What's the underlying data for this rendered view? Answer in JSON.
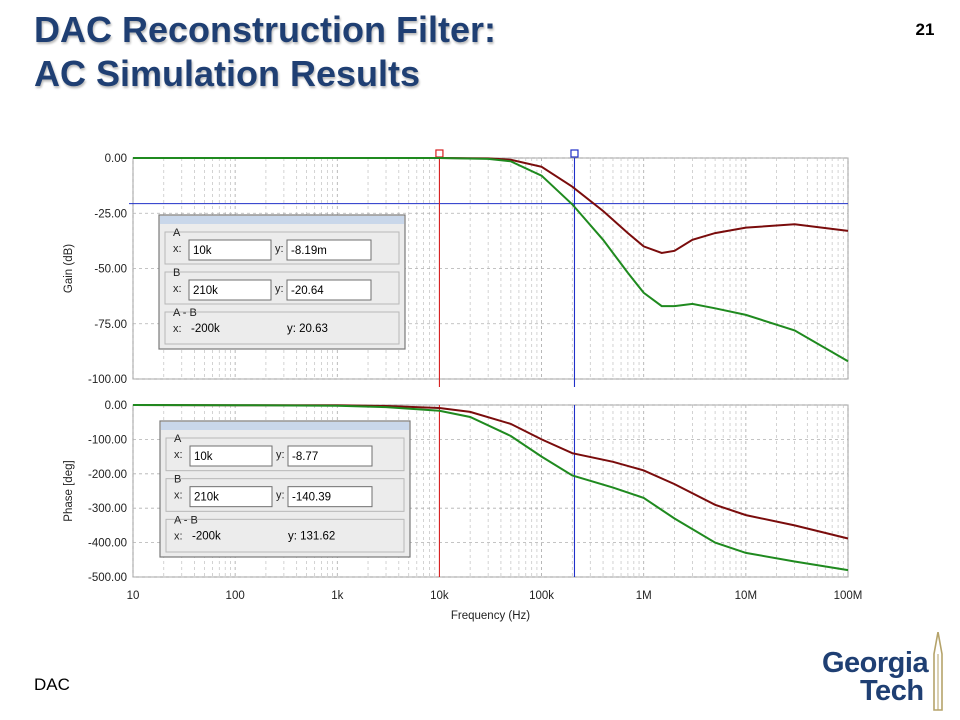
{
  "slide": {
    "title_line1": "DAC Reconstruction Filter:",
    "title_line2": "AC Simulation Results",
    "page_number": "21",
    "footer": "DAC",
    "logo": {
      "line1": "Georgia",
      "line2": "Tech"
    }
  },
  "colors": {
    "title": "#1f3f73",
    "trace_dark_red": "#7a0c0c",
    "trace_green": "#1f8a1f",
    "cursor_red": "#d62020",
    "cursor_blue": "#2030c8"
  },
  "chart_data": [
    {
      "type": "line",
      "panel": "gain",
      "ylabel": "Gain (dB)",
      "xlabel": "",
      "x_scale": "log",
      "xlim": [
        10,
        100000000
      ],
      "ylim": [
        -100,
        0
      ],
      "ytick_labels": [
        "0.00",
        "-25.00",
        "-50.00",
        "-75.00",
        "-100.00"
      ],
      "yticks": [
        0,
        -25,
        -50,
        -75,
        -100
      ],
      "grid": true,
      "cursors": [
        {
          "name": "A",
          "x": 10000,
          "color": "#d62020"
        },
        {
          "name": "B",
          "x": 210000,
          "color": "#2030c8"
        }
      ],
      "horizontal_cursor_y": -20.64,
      "series": [
        {
          "color": "#7a0c0c",
          "x": [
            10,
            1000,
            10000,
            30000,
            50000,
            100000,
            200000,
            400000,
            700000,
            1000000,
            1500000,
            2000000,
            3000000,
            5000000,
            10000000,
            30000000,
            100000000
          ],
          "values": [
            0,
            0,
            0,
            -0.2,
            -0.8,
            -4,
            -13,
            -24,
            -34,
            -40,
            -43,
            -42,
            -37,
            -34,
            -31.5,
            -30,
            -33
          ]
        },
        {
          "color": "#1f8a1f",
          "x": [
            10,
            1000,
            10000,
            30000,
            50000,
            100000,
            200000,
            400000,
            700000,
            1000000,
            1500000,
            2000000,
            3000000,
            5000000,
            10000000,
            30000000,
            100000000
          ],
          "values": [
            0,
            0,
            0,
            -0.4,
            -1.5,
            -8,
            -21,
            -37,
            -52,
            -61,
            -67,
            -67,
            -66,
            -68,
            -71,
            -78,
            -92
          ]
        }
      ],
      "cursor_box": {
        "A_label": "A",
        "A_x_label": "x:",
        "A_x": "10k",
        "A_y_label": "y:",
        "A_y": "-8.19m",
        "B_label": "B",
        "B_x_label": "x:",
        "B_x": "210k",
        "B_y_label": "y:",
        "B_y": "-20.64",
        "diff_label": "A - B",
        "diff_x_label": "x:",
        "diff_x": "-200k",
        "diff_y": "y: 20.63"
      }
    },
    {
      "type": "line",
      "panel": "phase",
      "ylabel": "Phase [deg]",
      "xlabel": "Frequency (Hz)",
      "x_scale": "log",
      "xlim": [
        10,
        100000000
      ],
      "ylim": [
        -500,
        0
      ],
      "xtick_labels": [
        "10",
        "100",
        "1k",
        "10k",
        "100k",
        "1M",
        "10M",
        "100M"
      ],
      "xticks": [
        10,
        100,
        1000,
        10000,
        100000,
        1000000,
        10000000,
        100000000
      ],
      "ytick_labels": [
        "0.00",
        "-100.00",
        "-200.00",
        "-300.00",
        "-400.00",
        "-500.00"
      ],
      "yticks": [
        0,
        -100,
        -200,
        -300,
        -400,
        -500
      ],
      "grid": true,
      "cursors": [
        {
          "name": "A",
          "x": 10000,
          "color": "#d62020"
        },
        {
          "name": "B",
          "x": 210000,
          "color": "#2030c8"
        }
      ],
      "series": [
        {
          "color": "#7a0c0c",
          "x": [
            10,
            100,
            1000,
            3000,
            10000,
            20000,
            50000,
            100000,
            200000,
            500000,
            1000000,
            2000000,
            5000000,
            10000000,
            30000000,
            100000000
          ],
          "values": [
            0,
            -0.5,
            -1,
            -3,
            -8.77,
            -20,
            -55,
            -100,
            -140,
            -165,
            -190,
            -230,
            -290,
            -320,
            -350,
            -388
          ]
        },
        {
          "color": "#1f8a1f",
          "x": [
            10,
            100,
            1000,
            3000,
            10000,
            20000,
            50000,
            100000,
            200000,
            500000,
            1000000,
            2000000,
            5000000,
            10000000,
            30000000,
            100000000
          ],
          "values": [
            0,
            -0.5,
            -2,
            -6,
            -17,
            -35,
            -90,
            -150,
            -205,
            -240,
            -270,
            -330,
            -400,
            -430,
            -455,
            -480
          ]
        }
      ],
      "cursor_box": {
        "A_label": "A",
        "A_x_label": "x:",
        "A_x": "10k",
        "A_y_label": "y:",
        "A_y": "-8.77",
        "B_label": "B",
        "B_x_label": "x:",
        "B_x": "210k",
        "B_y_label": "y:",
        "B_y": "-140.39",
        "diff_label": "A - B",
        "diff_x_label": "x:",
        "diff_x": "-200k",
        "diff_y": "y: 131.62"
      }
    }
  ]
}
